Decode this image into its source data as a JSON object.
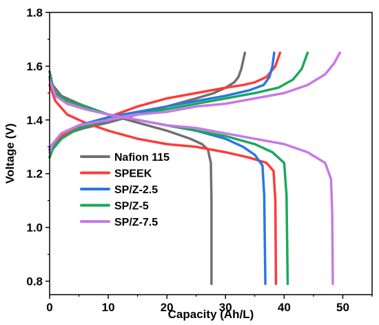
{
  "chart_data": {
    "type": "line",
    "title": "",
    "xlabel": "Capacity (Ah/L)",
    "ylabel": "Voltage (V)",
    "xlim": [
      0,
      55
    ],
    "ylim": [
      0.75,
      1.8
    ],
    "x_ticks": [
      "0",
      "10",
      "20",
      "30",
      "40",
      "50"
    ],
    "y_ticks": [
      "0.8",
      "1.0",
      "1.2",
      "1.4",
      "1.6",
      "1.8"
    ],
    "grid": false,
    "legend_position": "left",
    "series": [
      {
        "name": "Nafion 115",
        "color": "#707070",
        "charge": [
          [
            0,
            1.26
          ],
          [
            0.5,
            1.3
          ],
          [
            1.5,
            1.33
          ],
          [
            3,
            1.35
          ],
          [
            6,
            1.37
          ],
          [
            10,
            1.39
          ],
          [
            15,
            1.42
          ],
          [
            20,
            1.45
          ],
          [
            25,
            1.48
          ],
          [
            28,
            1.5
          ],
          [
            30,
            1.52
          ],
          [
            31.5,
            1.54
          ],
          [
            32.2,
            1.56
          ],
          [
            32.7,
            1.59
          ],
          [
            33.3,
            1.65
          ]
        ],
        "discharge": [
          [
            0,
            1.58
          ],
          [
            0.5,
            1.53
          ],
          [
            2,
            1.49
          ],
          [
            5,
            1.46
          ],
          [
            10,
            1.42
          ],
          [
            15,
            1.39
          ],
          [
            20,
            1.36
          ],
          [
            24,
            1.33
          ],
          [
            26,
            1.31
          ],
          [
            27,
            1.29
          ],
          [
            27.5,
            1.24
          ],
          [
            27.6,
            1.1
          ],
          [
            27.6,
            0.79
          ]
        ]
      },
      {
        "name": "SPEEK",
        "color": "#ff3a3a",
        "charge": [
          [
            0,
            1.29
          ],
          [
            0.5,
            1.31
          ],
          [
            2,
            1.34
          ],
          [
            5,
            1.37
          ],
          [
            10,
            1.41
          ],
          [
            15,
            1.45
          ],
          [
            20,
            1.48
          ],
          [
            25,
            1.5
          ],
          [
            30,
            1.52
          ],
          [
            33,
            1.53
          ],
          [
            35,
            1.54
          ],
          [
            37,
            1.56
          ],
          [
            38.5,
            1.6
          ],
          [
            39.3,
            1.65
          ]
        ],
        "discharge": [
          [
            0,
            1.53
          ],
          [
            1,
            1.47
          ],
          [
            3,
            1.42
          ],
          [
            6,
            1.39
          ],
          [
            10,
            1.36
          ],
          [
            15,
            1.33
          ],
          [
            20,
            1.31
          ],
          [
            25,
            1.3
          ],
          [
            30,
            1.28
          ],
          [
            34,
            1.26
          ],
          [
            37,
            1.24
          ],
          [
            38.2,
            1.21
          ],
          [
            38.5,
            1.1
          ],
          [
            38.6,
            0.79
          ]
        ]
      },
      {
        "name": "SP/Z-2.5",
        "color": "#2878e0",
        "charge": [
          [
            0,
            1.29
          ],
          [
            0.5,
            1.31
          ],
          [
            2,
            1.35
          ],
          [
            5,
            1.38
          ],
          [
            10,
            1.41
          ],
          [
            15,
            1.43
          ],
          [
            20,
            1.45
          ],
          [
            25,
            1.47
          ],
          [
            30,
            1.49
          ],
          [
            34,
            1.51
          ],
          [
            36.5,
            1.53
          ],
          [
            37.5,
            1.56
          ],
          [
            38,
            1.6
          ],
          [
            38.3,
            1.65
          ]
        ],
        "discharge": [
          [
            0,
            1.56
          ],
          [
            1,
            1.5
          ],
          [
            3,
            1.47
          ],
          [
            6,
            1.45
          ],
          [
            10,
            1.42
          ],
          [
            15,
            1.4
          ],
          [
            20,
            1.38
          ],
          [
            25,
            1.36
          ],
          [
            30,
            1.33
          ],
          [
            33,
            1.3
          ],
          [
            35,
            1.27
          ],
          [
            36.3,
            1.23
          ],
          [
            36.6,
            1.12
          ],
          [
            36.8,
            0.79
          ]
        ]
      },
      {
        "name": "SP/Z-5",
        "color": "#1aa85a",
        "charge": [
          [
            0,
            1.26
          ],
          [
            0.5,
            1.29
          ],
          [
            2,
            1.33
          ],
          [
            5,
            1.37
          ],
          [
            10,
            1.4
          ],
          [
            15,
            1.42
          ],
          [
            20,
            1.44
          ],
          [
            25,
            1.46
          ],
          [
            30,
            1.48
          ],
          [
            35,
            1.5
          ],
          [
            39,
            1.52
          ],
          [
            41.5,
            1.55
          ],
          [
            43,
            1.59
          ],
          [
            44,
            1.65
          ]
        ],
        "discharge": [
          [
            0,
            1.56
          ],
          [
            1,
            1.5
          ],
          [
            3,
            1.47
          ],
          [
            6,
            1.45
          ],
          [
            10,
            1.42
          ],
          [
            15,
            1.4
          ],
          [
            20,
            1.38
          ],
          [
            25,
            1.36
          ],
          [
            30,
            1.34
          ],
          [
            35,
            1.31
          ],
          [
            38,
            1.28
          ],
          [
            40,
            1.24
          ],
          [
            40.4,
            1.12
          ],
          [
            40.6,
            0.79
          ]
        ]
      },
      {
        "name": "SP/Z-7.5",
        "color": "#c878e8",
        "charge": [
          [
            0,
            1.28
          ],
          [
            0.5,
            1.31
          ],
          [
            2,
            1.35
          ],
          [
            5,
            1.38
          ],
          [
            10,
            1.4
          ],
          [
            15,
            1.42
          ],
          [
            20,
            1.43
          ],
          [
            25,
            1.45
          ],
          [
            30,
            1.46
          ],
          [
            35,
            1.48
          ],
          [
            40,
            1.5
          ],
          [
            44,
            1.53
          ],
          [
            47,
            1.57
          ],
          [
            48.5,
            1.61
          ],
          [
            49.5,
            1.65
          ]
        ],
        "discharge": [
          [
            0,
            1.55
          ],
          [
            1,
            1.49
          ],
          [
            3,
            1.46
          ],
          [
            6,
            1.44
          ],
          [
            10,
            1.42
          ],
          [
            15,
            1.4
          ],
          [
            20,
            1.38
          ],
          [
            25,
            1.37
          ],
          [
            30,
            1.35
          ],
          [
            35,
            1.33
          ],
          [
            40,
            1.31
          ],
          [
            44,
            1.28
          ],
          [
            47,
            1.24
          ],
          [
            48,
            1.18
          ],
          [
            48.2,
            1.05
          ],
          [
            48.3,
            0.79
          ]
        ]
      }
    ]
  }
}
